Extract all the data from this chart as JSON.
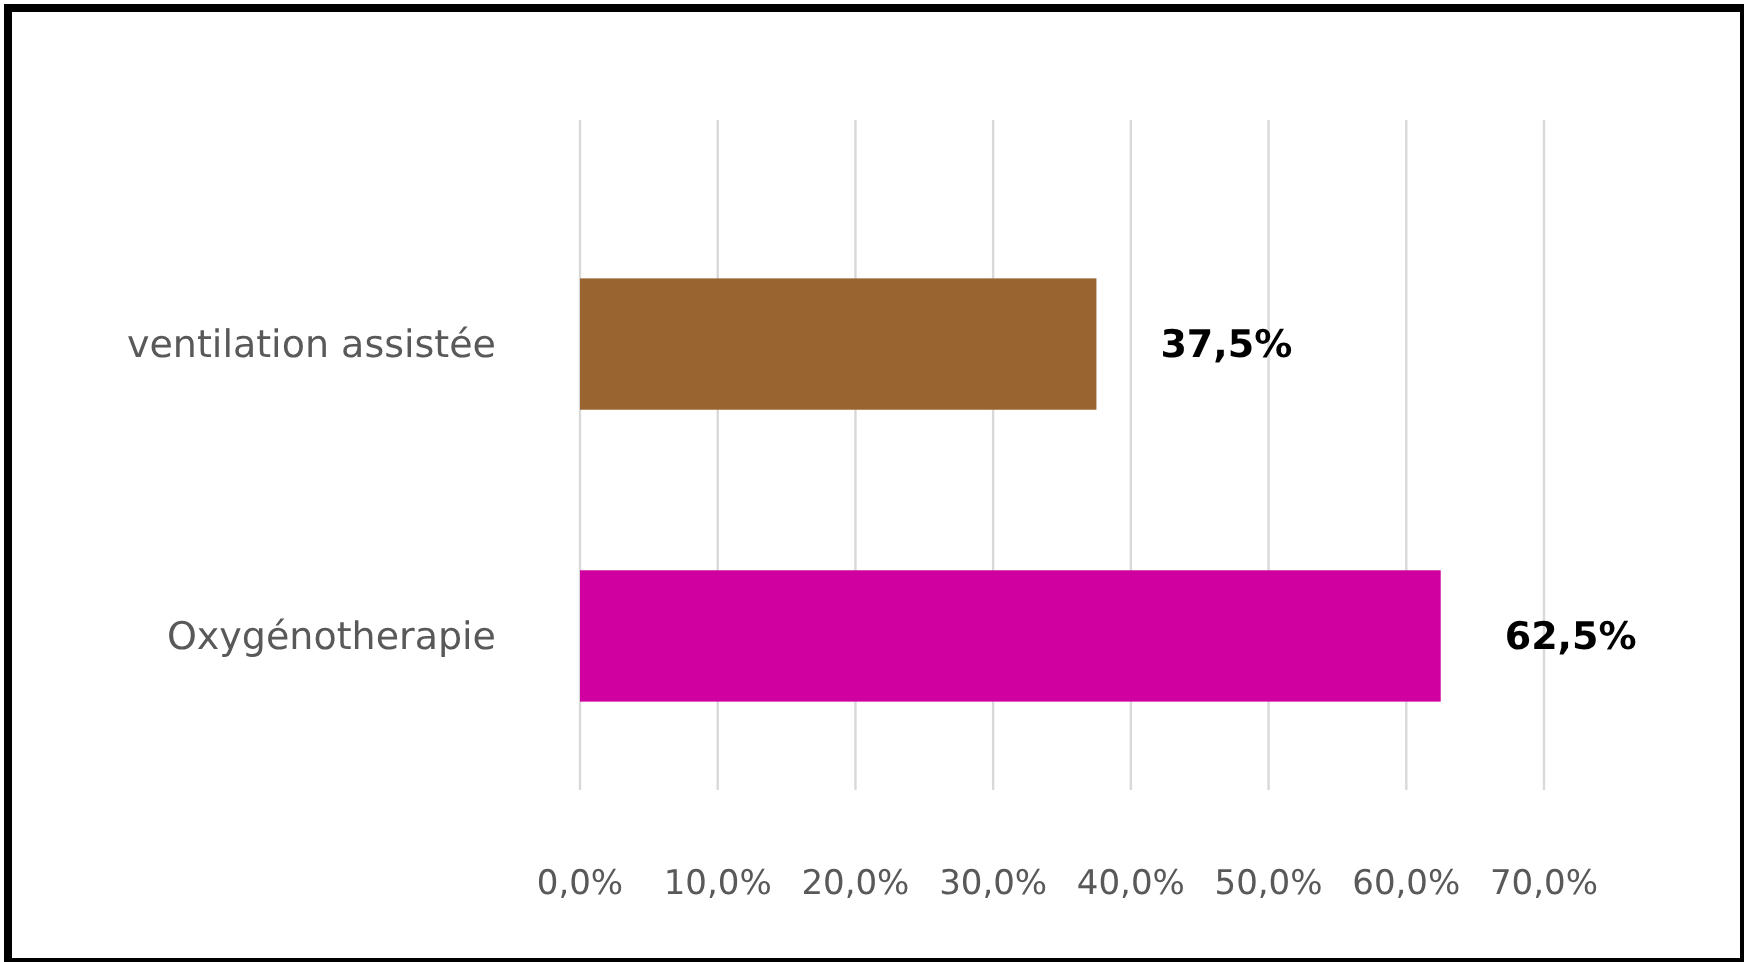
{
  "chart_data": {
    "type": "bar",
    "orientation": "horizontal",
    "categories": [
      "ventilation assistée",
      "Oxygénotherapie"
    ],
    "values": [
      37.5,
      62.5
    ],
    "colors": [
      "#9a6430",
      "#d000a0"
    ],
    "value_labels": [
      "37,5%",
      "62,5%"
    ],
    "xlim": [
      0,
      70
    ],
    "xticks": [
      {
        "value": 0,
        "label": "0,0%"
      },
      {
        "value": 10,
        "label": "10,0%"
      },
      {
        "value": 20,
        "label": "20,0%"
      },
      {
        "value": 30,
        "label": "30,0%"
      },
      {
        "value": 40,
        "label": "40,0%"
      },
      {
        "value": 50,
        "label": "50,0%"
      },
      {
        "value": 60,
        "label": "60,0%"
      },
      {
        "value": 70,
        "label": "70,0%"
      }
    ],
    "grid": "x"
  }
}
